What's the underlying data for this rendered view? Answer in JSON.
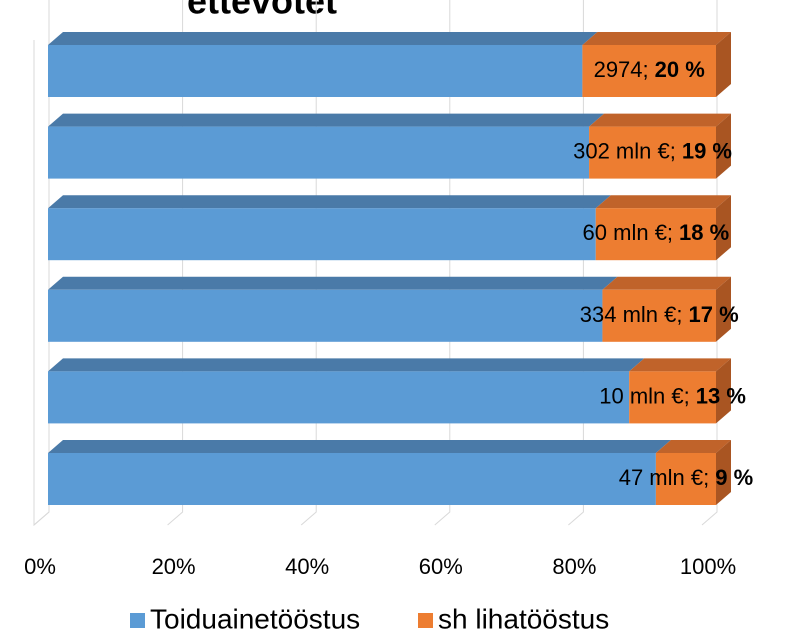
{
  "chart_data": {
    "type": "bar",
    "orientation": "horizontal",
    "stacked": true,
    "three_d": true,
    "title": "ettevõtet",
    "series": [
      {
        "name": "Toiduainetööstus",
        "color": "#5b9bd5",
        "values": [
          80,
          81,
          82,
          83,
          87,
          91
        ]
      },
      {
        "name": "sh lihatööstus",
        "color": "#ed7d31",
        "values": [
          20,
          19,
          18,
          17,
          13,
          9
        ],
        "label_prefixes": [
          "2974;",
          "302 mln €;",
          "60 mln €;",
          "334 mln €;",
          "10 mln €;",
          "47 mln €;"
        ],
        "value_labels": [
          "20 %",
          "19 %",
          "18 %",
          "17 %",
          "13 %",
          "9 %"
        ]
      }
    ],
    "xlim": [
      0,
      100
    ],
    "xticks": [
      {
        "value": 0,
        "label": "0%"
      },
      {
        "value": 20,
        "label": "20%"
      },
      {
        "value": 40,
        "label": "40%"
      },
      {
        "value": 60,
        "label": "60%"
      },
      {
        "value": 80,
        "label": "80%"
      },
      {
        "value": 100,
        "label": "100%"
      }
    ],
    "grid": true,
    "legend": "bottom"
  }
}
